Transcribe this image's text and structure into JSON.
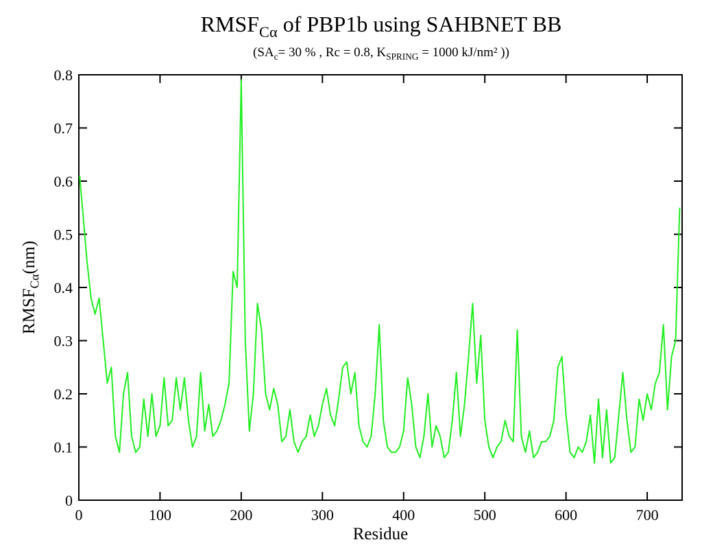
{
  "chart_data": {
    "type": "line",
    "title": [
      {
        "text": "RMSF"
      },
      {
        "text": "Cα",
        "sub": true
      },
      {
        "text": " of PBP1b using SAHBNET BB"
      }
    ],
    "subtitle": [
      {
        "text": "(SA"
      },
      {
        "text": "c",
        "sub": true
      },
      {
        "text": "= 30 % , Rc = 0.8, K"
      },
      {
        "text": "SPRING",
        "sub": true
      },
      {
        "text": " = 1000 kJ/nm² ))"
      }
    ],
    "x_label": [
      {
        "text": "Residue"
      }
    ],
    "y_label": [
      {
        "text": "RMSF"
      },
      {
        "text": "Cα",
        "sub": true
      },
      {
        "text": "(nm)"
      }
    ],
    "x": [
      1,
      5,
      10,
      15,
      20,
      25,
      30,
      35,
      40,
      45,
      50,
      55,
      60,
      65,
      70,
      75,
      80,
      85,
      90,
      95,
      100,
      105,
      110,
      115,
      120,
      125,
      130,
      135,
      140,
      145,
      150,
      155,
      160,
      165,
      170,
      175,
      180,
      185,
      190,
      195,
      200,
      205,
      210,
      215,
      220,
      225,
      230,
      235,
      240,
      245,
      250,
      255,
      260,
      265,
      270,
      275,
      280,
      285,
      290,
      295,
      300,
      305,
      310,
      315,
      320,
      325,
      330,
      335,
      340,
      345,
      350,
      355,
      360,
      365,
      370,
      375,
      380,
      385,
      390,
      395,
      400,
      405,
      410,
      415,
      420,
      425,
      430,
      435,
      440,
      445,
      450,
      455,
      460,
      465,
      470,
      475,
      480,
      485,
      490,
      495,
      500,
      505,
      510,
      515,
      520,
      525,
      530,
      535,
      540,
      545,
      550,
      555,
      560,
      565,
      570,
      575,
      580,
      585,
      590,
      595,
      600,
      605,
      610,
      615,
      620,
      625,
      630,
      635,
      640,
      645,
      650,
      655,
      660,
      665,
      670,
      675,
      680,
      685,
      690,
      695,
      700,
      705,
      710,
      715,
      720,
      725,
      730,
      735,
      740
    ],
    "series": [
      {
        "color": "#22ee22",
        "values": [
          0.61,
          0.54,
          0.45,
          0.38,
          0.35,
          0.38,
          0.3,
          0.22,
          0.25,
          0.12,
          0.09,
          0.2,
          0.24,
          0.12,
          0.09,
          0.1,
          0.19,
          0.12,
          0.2,
          0.12,
          0.14,
          0.23,
          0.14,
          0.15,
          0.23,
          0.17,
          0.23,
          0.15,
          0.1,
          0.12,
          0.24,
          0.13,
          0.18,
          0.12,
          0.13,
          0.15,
          0.18,
          0.22,
          0.43,
          0.4,
          0.79,
          0.3,
          0.13,
          0.2,
          0.37,
          0.32,
          0.2,
          0.17,
          0.21,
          0.18,
          0.11,
          0.12,
          0.17,
          0.11,
          0.09,
          0.11,
          0.12,
          0.16,
          0.12,
          0.14,
          0.18,
          0.21,
          0.16,
          0.14,
          0.19,
          0.25,
          0.26,
          0.2,
          0.24,
          0.14,
          0.11,
          0.1,
          0.12,
          0.2,
          0.33,
          0.15,
          0.1,
          0.09,
          0.09,
          0.1,
          0.13,
          0.23,
          0.18,
          0.1,
          0.08,
          0.12,
          0.2,
          0.1,
          0.14,
          0.12,
          0.08,
          0.09,
          0.15,
          0.24,
          0.12,
          0.18,
          0.27,
          0.37,
          0.22,
          0.31,
          0.15,
          0.1,
          0.08,
          0.1,
          0.11,
          0.15,
          0.12,
          0.11,
          0.32,
          0.12,
          0.09,
          0.13,
          0.08,
          0.09,
          0.11,
          0.11,
          0.12,
          0.15,
          0.25,
          0.27,
          0.16,
          0.09,
          0.08,
          0.1,
          0.09,
          0.11,
          0.16,
          0.07,
          0.19,
          0.08,
          0.17,
          0.07,
          0.08,
          0.16,
          0.24,
          0.15,
          0.09,
          0.1,
          0.19,
          0.15,
          0.2,
          0.17,
          0.22,
          0.24,
          0.33,
          0.17,
          0.27,
          0.3,
          0.55
        ]
      }
    ],
    "xlim": [
      0,
      743
    ],
    "xticks": [
      0,
      100,
      200,
      300,
      400,
      500,
      600,
      700
    ],
    "ylim": [
      0,
      0.8
    ],
    "yticks": [
      0,
      0.1,
      0.2,
      0.3,
      0.4,
      0.5,
      0.6,
      0.7,
      0.8
    ]
  }
}
